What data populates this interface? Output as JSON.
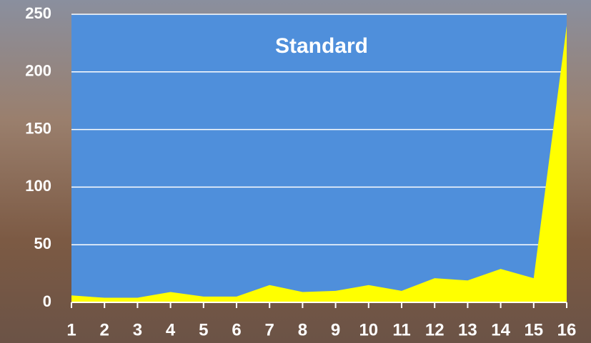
{
  "chart_data": {
    "type": "area",
    "title": "Standard",
    "categories": [
      "1",
      "2",
      "3",
      "4",
      "5",
      "6",
      "7",
      "8",
      "9",
      "10",
      "11",
      "12",
      "13",
      "14",
      "15",
      "16"
    ],
    "values": [
      6,
      4,
      4,
      9,
      5,
      5,
      15,
      9,
      10,
      15,
      10,
      21,
      19,
      29,
      21,
      240
    ],
    "color": "#ffff00",
    "ylim": [
      0,
      250
    ],
    "yticks": [
      0,
      50,
      100,
      150,
      200,
      250
    ],
    "grid": true
  }
}
